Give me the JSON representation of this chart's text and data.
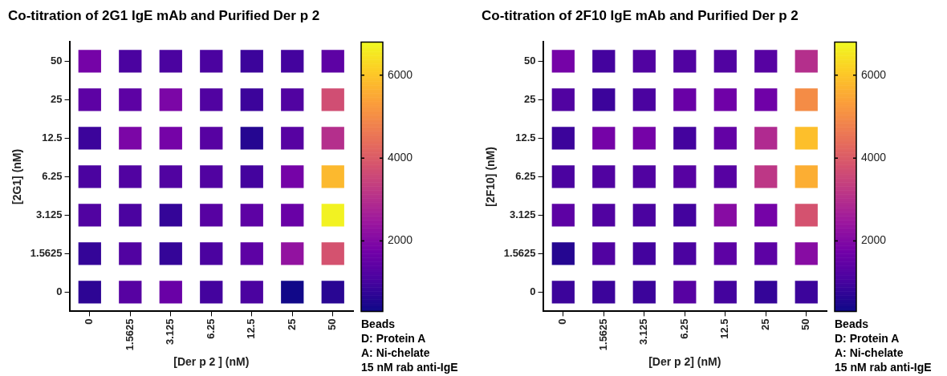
{
  "chart_data": [
    {
      "type": "heatmap",
      "title": "Co-titration of 2G1 IgE mAb and Purified Der p 2",
      "xlabel": "[Der p 2 ] (nM)",
      "ylabel": "[2G1] (nM)",
      "categories": [
        "0",
        "1.5625",
        "3.125",
        "6.25",
        "12.5",
        "25",
        "50"
      ],
      "y_categories": [
        "50",
        "25",
        "12.5",
        "6.25",
        "3.125",
        "1.5625",
        "0"
      ],
      "cells": [
        [
          1800,
          1100,
          1100,
          1100,
          900,
          1000,
          1400
        ],
        [
          1400,
          1400,
          1900,
          1200,
          900,
          1200,
          3700
        ],
        [
          900,
          1900,
          1800,
          1300,
          600,
          1300,
          3000
        ],
        [
          1100,
          1200,
          1200,
          1200,
          1000,
          1800,
          5800
        ],
        [
          1200,
          1100,
          800,
          1300,
          1400,
          1600,
          6700
        ],
        [
          800,
          1200,
          800,
          1100,
          1400,
          2300,
          3800
        ],
        [
          700,
          1300,
          1600,
          1000,
          1100,
          350,
          650
        ]
      ],
      "clim": [
        300,
        6800
      ],
      "cticks": [
        2000,
        4000,
        6000
      ],
      "annotations": [
        "Beads",
        "D: Protein A",
        "A: Ni-chelate",
        "15 nM rab anti-IgE"
      ]
    },
    {
      "type": "heatmap",
      "title": "Co-titration of 2F10 IgE mAb and Purified Der p 2",
      "xlabel": "[Der p 2] (nM)",
      "ylabel": "[2F10] (nM)",
      "categories": [
        "0",
        "1.5625",
        "3.125",
        "6.25",
        "12.5",
        "25",
        "50"
      ],
      "y_categories": [
        "50",
        "25",
        "12.5",
        "6.25",
        "3.125",
        "1.5625",
        "0"
      ],
      "cells": [
        [
          1800,
          1000,
          1200,
          1200,
          1200,
          1300,
          3000
        ],
        [
          1200,
          900,
          1100,
          1600,
          1700,
          1700,
          5000
        ],
        [
          900,
          1800,
          1800,
          1000,
          1500,
          2900,
          5900
        ],
        [
          1100,
          1200,
          1200,
          1300,
          1300,
          3200,
          5600
        ],
        [
          1400,
          1200,
          1100,
          1000,
          2100,
          1800,
          3800
        ],
        [
          600,
          1200,
          1000,
          1100,
          1400,
          1400,
          2100
        ],
        [
          900,
          900,
          900,
          1300,
          1000,
          800,
          900
        ]
      ],
      "clim": [
        300,
        6800
      ],
      "cticks": [
        2000,
        4000,
        6000
      ],
      "annotations": [
        "Beads",
        "D: Protein A",
        "A: Ni-chelate",
        "15 nM rab anti-IgE"
      ]
    }
  ]
}
